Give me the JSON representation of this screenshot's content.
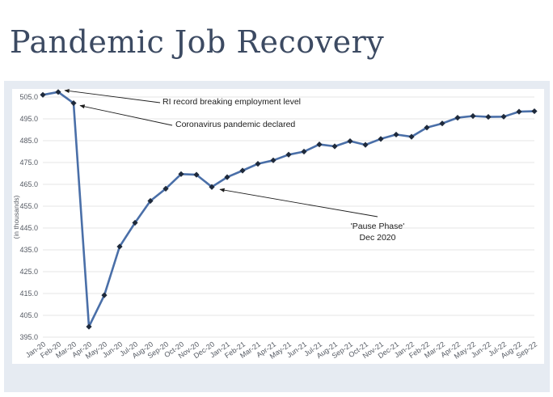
{
  "slide": {
    "title": "Pandemic Job Recovery"
  },
  "colors": {
    "title": "#3c4a62",
    "panel_bg": "#e6ebf2",
    "plot_bg": "#ffffff",
    "line": "#4a6fa8",
    "marker": "#1e2a3c",
    "grid": "#e4e4e4"
  },
  "chart_data": {
    "type": "line",
    "title": "",
    "xlabel": "",
    "ylabel": "(in thousands)",
    "ylim": [
      395.0,
      505.0
    ],
    "yticks": [
      395.0,
      405.0,
      415.0,
      425.0,
      435.0,
      445.0,
      455.0,
      465.0,
      475.0,
      485.0,
      495.0,
      505.0
    ],
    "ytick_labels": [
      "395.0",
      "405.0",
      "415.0",
      "425.0",
      "435.0",
      "445.0",
      "455.0",
      "465.0",
      "475.0",
      "485.0",
      "495.0",
      "505.0"
    ],
    "grid": true,
    "categories": [
      "Jan-20",
      "Feb-20",
      "Mar-20",
      "Apr-20",
      "May-20",
      "Jun-20",
      "Jul-20",
      "Aug-20",
      "Sep-20",
      "Oct-20",
      "Nov-20",
      "Dec-20",
      "Jan-21",
      "Feb-21",
      "Mar-21",
      "Apr-21",
      "May-21",
      "Jun-21",
      "Jul-21",
      "Aug-21",
      "Sep-21",
      "Oct-21",
      "Nov-21",
      "Dec-21",
      "Jan-22",
      "Feb-22",
      "Mar-22",
      "Apr-22",
      "May-22",
      "Jun-22",
      "Jul-22",
      "Aug-22",
      "Sep-22"
    ],
    "series": [
      {
        "values": [
          506.0,
          507.3,
          502.2,
          399.8,
          414.2,
          436.5,
          447.4,
          457.4,
          463.0,
          469.7,
          469.4,
          463.8,
          468.3,
          471.3,
          474.4,
          476.0,
          478.6,
          480.0,
          483.3,
          482.4,
          484.8,
          483.1,
          485.8,
          487.8,
          486.8,
          491.0,
          492.9,
          495.5,
          496.3,
          495.9,
          496.0,
          498.3,
          498.5
        ]
      }
    ],
    "annotations": [
      {
        "lines": [
          "RI record breaking employment level"
        ],
        "point_index": 1
      },
      {
        "lines": [
          "Coronavirus pandemic declared"
        ],
        "point_index": 2
      },
      {
        "lines": [
          "'Pause Phase'",
          "Dec 2020"
        ],
        "point_index": 11
      }
    ]
  }
}
